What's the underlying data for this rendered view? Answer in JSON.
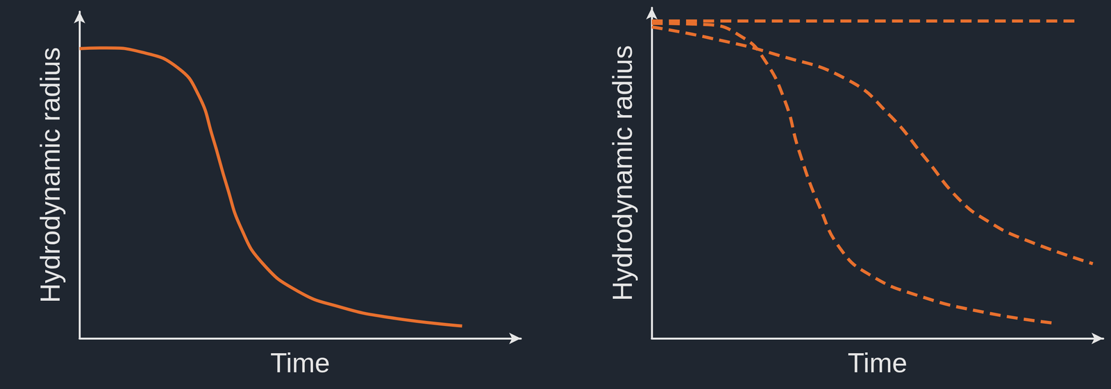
{
  "chart_data": [
    {
      "type": "line",
      "x_label": "Time",
      "y_label": "Hydrodynamic radius",
      "xlim": [
        0,
        10
      ],
      "ylim": [
        0,
        10
      ],
      "tick_labels": false,
      "grid": false,
      "series": [
        {
          "color": "#e8702e",
          "line_style": "solid",
          "x": [
            0,
            0.61,
            1.41,
            2.22,
            2.7,
            3.02,
            3.34,
            3.66,
            4.14,
            4.94,
            5.91,
            7.03,
            8.67
          ],
          "values": [
            8.87,
            8.89,
            8.76,
            8.29,
            7.44,
            6.15,
            4.66,
            3.38,
            2.31,
            1.45,
            0.96,
            0.64,
            0.38
          ]
        }
      ]
    },
    {
      "type": "line",
      "x_label": "Time",
      "y_label": "Hydrodynamic radius",
      "xlim": [
        0,
        10
      ],
      "ylim": [
        0,
        10
      ],
      "tick_labels": false,
      "grid": false,
      "series": [
        {
          "color": "#e8702e",
          "line_style": "dashed",
          "x": [
            0,
            9.46
          ],
          "values": [
            9.6,
            9.6
          ]
        },
        {
          "color": "#e8702e",
          "line_style": "dashed",
          "x": [
            0,
            1.24,
            2.02,
            2.48,
            2.95,
            3.26,
            3.72,
            4.19,
            4.81,
            5.89,
            7.44,
            8.99
          ],
          "values": [
            9.53,
            9.49,
            9.1,
            8.46,
            7.18,
            5.68,
            3.97,
            2.69,
            1.94,
            1.3,
            0.77,
            0.45
          ]
        },
        {
          "color": "#e8702e",
          "line_style": "dashed",
          "x": [
            0,
            1.24,
            2.79,
            4.34,
            5.27,
            6.05,
            6.82,
            7.44,
            8.22,
            9.77
          ],
          "values": [
            9.42,
            9.1,
            8.57,
            7.82,
            6.75,
            5.47,
            4.19,
            3.55,
            3.01,
            2.26
          ]
        }
      ]
    }
  ]
}
